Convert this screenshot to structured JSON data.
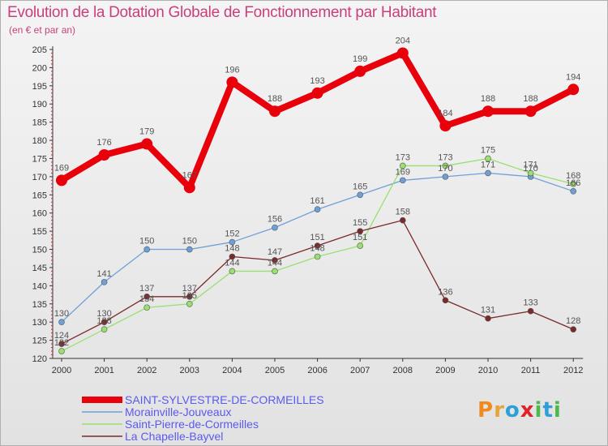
{
  "title": "Evolution de la Dotation Globale de Fonctionnement par Habitant",
  "subtitle": "(en € et par an)",
  "logo": {
    "text": "Proxiti",
    "letters": [
      "P",
      "r",
      "o",
      "x",
      "i",
      "t",
      "i"
    ],
    "colors": [
      "#f08a1c",
      "#e8a43a",
      "#2f9fd8",
      "#e0232b",
      "#4eb84a",
      "#2f9fd8",
      "#4eb84a"
    ]
  },
  "colors": {
    "title": "#c8407d",
    "legend_text": "#5a5af0",
    "axis": "#333333",
    "axis_ticks": "#e0232b"
  },
  "chart_data": {
    "type": "line",
    "title": "Evolution de la Dotation Globale de Fonctionnement par Habitant",
    "subtitle": "(en € et par an)",
    "xlabel": "",
    "ylabel": "",
    "x": [
      "2000",
      "2001",
      "2002",
      "2003",
      "2004",
      "2005",
      "2006",
      "2007",
      "2008",
      "2009",
      "2010",
      "2011",
      "2012"
    ],
    "ylim": [
      120,
      205
    ],
    "yticks": [
      120,
      125,
      130,
      135,
      140,
      145,
      150,
      155,
      160,
      165,
      170,
      175,
      180,
      185,
      190,
      195,
      200,
      205
    ],
    "grid": false,
    "legend_position": "bottom-left",
    "series": [
      {
        "name": "SAINT-SYLVESTRE-DE-CORMEILLES",
        "color": "#e8000b",
        "emphasis": true,
        "values": [
          169,
          176,
          179,
          167,
          196,
          188,
          193,
          199,
          204,
          184,
          188,
          188,
          194
        ],
        "labels": [
          "169",
          "176",
          "179",
          "167",
          "196",
          "188",
          "193",
          "199",
          "204",
          "184",
          "188",
          "188",
          "194"
        ]
      },
      {
        "name": "Morainville-Jouveaux",
        "color": "#6ea0d8",
        "emphasis": false,
        "values": [
          130,
          141,
          150,
          150,
          152,
          156,
          161,
          165,
          169,
          170,
          171,
          170,
          166
        ],
        "labels": [
          "130",
          "141",
          "150",
          "150",
          "152",
          "156",
          "161",
          "165",
          "169",
          "170",
          "171",
          "170",
          "166"
        ]
      },
      {
        "name": "Saint-Pierre-de-Cormeilles",
        "color": "#99e070",
        "emphasis": false,
        "values": [
          122,
          128,
          134,
          135,
          144,
          144,
          148,
          151,
          173,
          173,
          175,
          171,
          168
        ],
        "labels": [
          "122",
          "128",
          "134",
          "135",
          "144",
          "144",
          "148",
          "151",
          "173",
          "173",
          "175",
          "171",
          "168"
        ]
      },
      {
        "name": "La Chapelle-Bayvel",
        "color": "#7a2a2a",
        "emphasis": false,
        "values": [
          124,
          130,
          137,
          137,
          148,
          147,
          151,
          155,
          158,
          136,
          131,
          133,
          128
        ],
        "labels": [
          "124",
          "130",
          "137",
          "137",
          "148",
          "147",
          "151",
          "155",
          "158",
          "136",
          "131",
          "133",
          "128"
        ]
      }
    ]
  }
}
